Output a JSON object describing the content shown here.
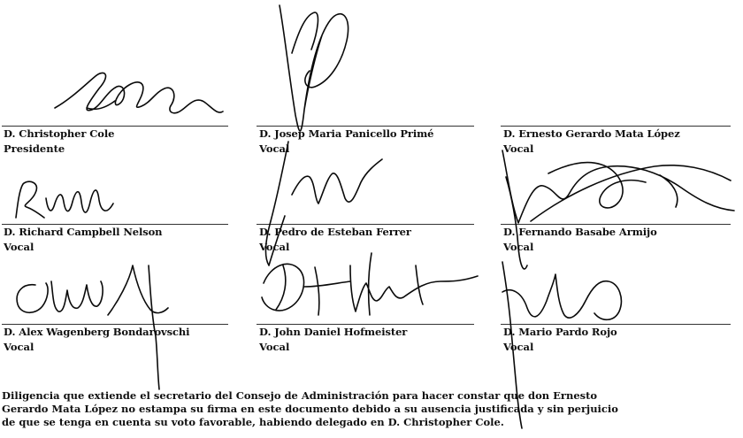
{
  "signatories": [
    {
      "name": "D. Christopher Cole",
      "role": "Presidente"
    },
    {
      "name": "D. Josep Maria Panicello Primé",
      "role": "Vocal"
    },
    {
      "name": "D. Ernesto Gerardo Mata López",
      "role": "Vocal"
    },
    {
      "name": "D. Richard Campbell Nelson",
      "role": "Vocal"
    },
    {
      "name": "D. Pedro de Esteban Ferrer",
      "role": "Vocal"
    },
    {
      "name": "D. Fernando Basabe Armijo",
      "role": "Vocal"
    },
    {
      "name": "D. Alex Wagenberg Bondarovschi",
      "role": "Vocal"
    },
    {
      "name": "D. John Daniel Hofmeister",
      "role": "Vocal"
    },
    {
      "name": "D. Mario Pardo Rojo",
      "role": "Vocal"
    }
  ],
  "footer": {
    "line1": "Diligencia que extiende el secretario del Consejo de Administración para hacer constar que don Ernesto",
    "line2": "Gerardo Mata López no estampa su firma en este documento debido a su ausencia justificada y sin perjuicio",
    "line3": "de que se tenga en cuenta su voto favorable, habiendo delegado en D. Christopher Cole."
  }
}
